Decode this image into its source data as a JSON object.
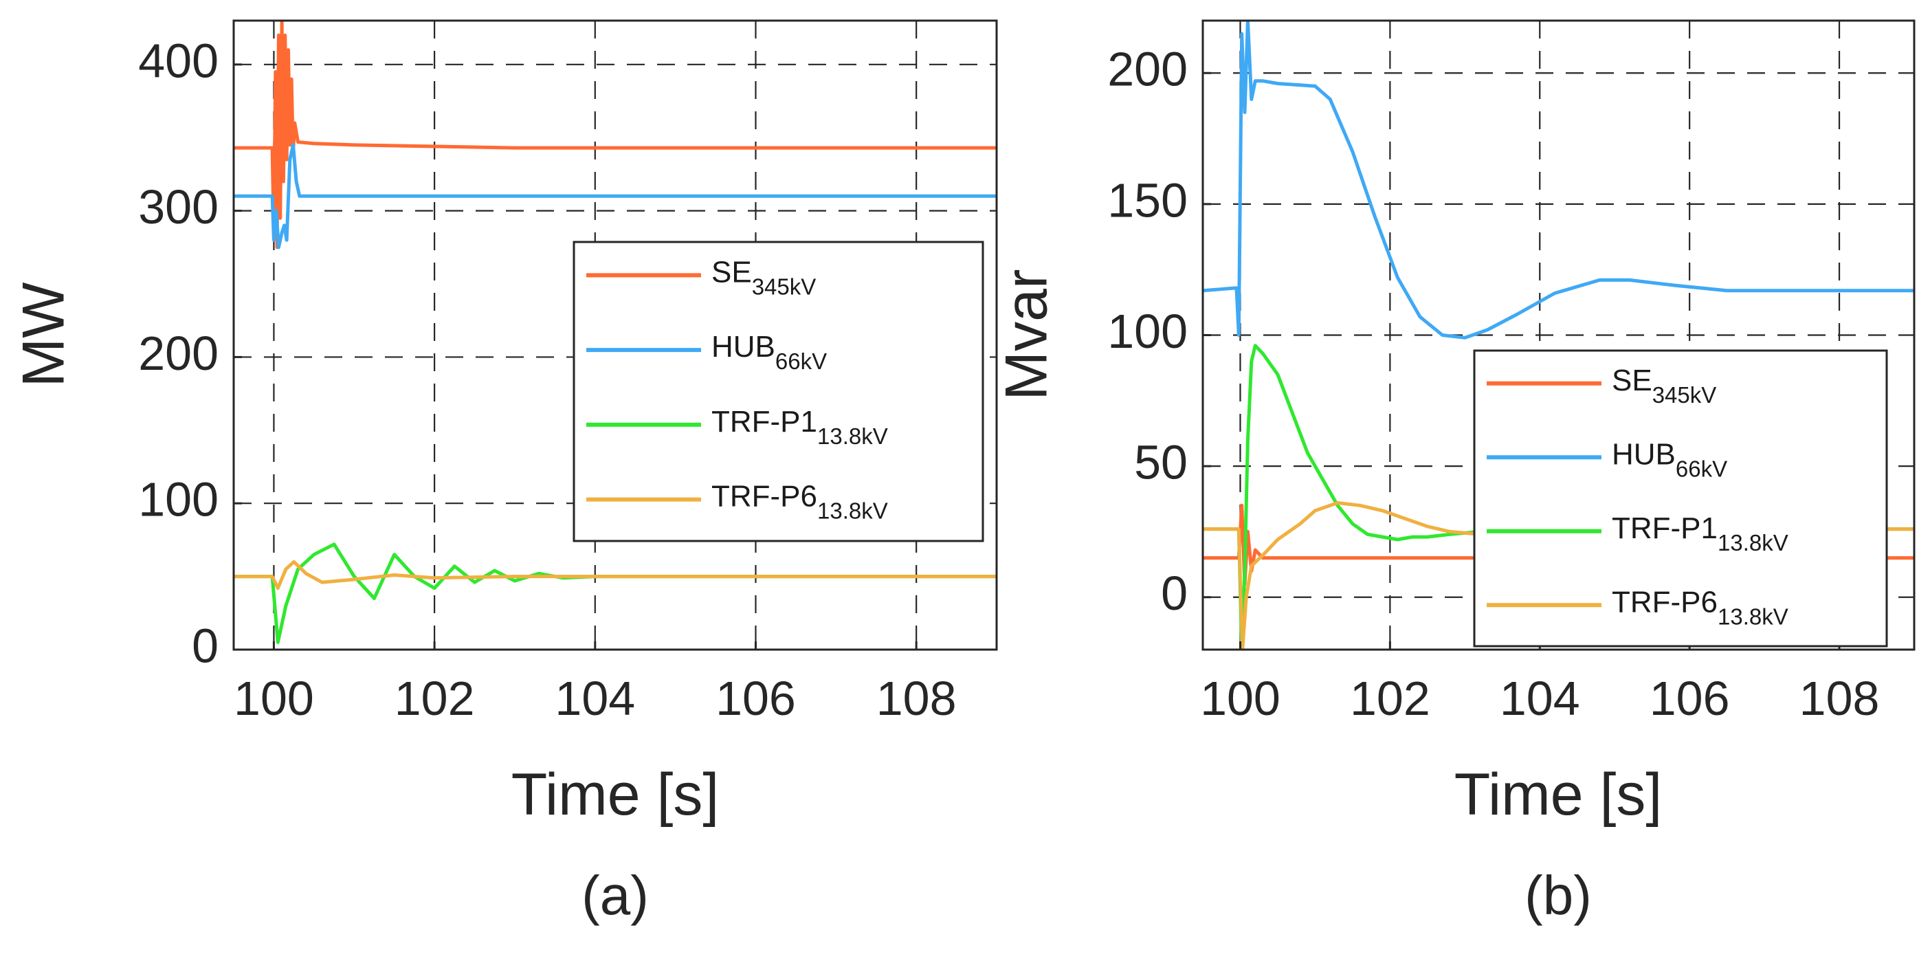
{
  "colors": {
    "se": "#ff6a33",
    "hub": "#3fa9f5",
    "trf_p1": "#2fe82f",
    "trf_p6": "#f0b040",
    "axes": "#262626"
  },
  "chart_data": [
    {
      "type": "line",
      "caption": "(a)",
      "xlabel": "Time [s]",
      "ylabel": "MW",
      "xlim": [
        99.5,
        109
      ],
      "ylim": [
        0,
        430
      ],
      "xticks": [
        100,
        102,
        104,
        106,
        108
      ],
      "yticks": [
        0,
        100,
        200,
        300,
        400
      ],
      "grid": true,
      "legend_position": "center-right",
      "legend": [
        {
          "key": "se",
          "label": "SE",
          "sub": "345kV"
        },
        {
          "key": "hub",
          "label": "HUB",
          "sub": "66kV"
        },
        {
          "key": "trf_p1",
          "label": "TRF-P1",
          "sub": "13.8kV"
        },
        {
          "key": "trf_p6",
          "label": "TRF-P6",
          "sub": "13.8kV"
        }
      ],
      "series": [
        {
          "key": "se",
          "x": [
            99.5,
            99.98,
            100.0,
            100.02,
            100.04,
            100.06,
            100.08,
            100.1,
            100.12,
            100.14,
            100.16,
            100.18,
            100.2,
            100.22,
            100.24,
            100.26,
            100.3,
            100.5,
            101,
            102,
            103,
            105,
            109
          ],
          "y": [
            343,
            343,
            285,
            395,
            275,
            420,
            295,
            430,
            320,
            420,
            335,
            410,
            345,
            390,
            340,
            360,
            347,
            346,
            345,
            344,
            343,
            343,
            343
          ]
        },
        {
          "key": "hub",
          "x": [
            99.5,
            99.98,
            100.0,
            100.03,
            100.06,
            100.1,
            100.13,
            100.16,
            100.2,
            100.24,
            100.28,
            100.32,
            100.4,
            101,
            103,
            105,
            109
          ],
          "y": [
            310,
            310,
            280,
            300,
            275,
            285,
            290,
            280,
            335,
            345,
            320,
            310,
            310,
            310,
            310,
            310,
            310
          ]
        },
        {
          "key": "trf_p1",
          "x": [
            99.5,
            99.98,
            100.05,
            100.15,
            100.3,
            100.5,
            100.75,
            101.0,
            101.25,
            101.5,
            101.75,
            102.0,
            102.25,
            102.5,
            102.75,
            103.0,
            103.3,
            103.6,
            104.0,
            105,
            109
          ],
          "y": [
            50,
            50,
            5,
            30,
            55,
            65,
            72,
            50,
            35,
            65,
            50,
            42,
            57,
            46,
            54,
            47,
            52,
            49,
            50,
            50,
            50
          ]
        },
        {
          "key": "trf_p6",
          "x": [
            99.5,
            99.98,
            100.05,
            100.15,
            100.25,
            100.4,
            100.6,
            101.0,
            101.5,
            102.0,
            103.0,
            105,
            109
          ],
          "y": [
            50,
            50,
            42,
            55,
            60,
            52,
            46,
            48,
            51,
            49,
            50,
            50,
            50
          ]
        }
      ]
    },
    {
      "type": "line",
      "caption": "(b)",
      "xlabel": "Time [s]",
      "ylabel": "Mvar",
      "xlim": [
        99.5,
        109
      ],
      "ylim": [
        -20,
        220
      ],
      "xticks": [
        100,
        102,
        104,
        106,
        108
      ],
      "yticks": [
        0,
        50,
        100,
        150,
        200
      ],
      "grid": true,
      "legend_position": "bottom-right",
      "legend": [
        {
          "key": "se",
          "label": "SE",
          "sub": "345kV"
        },
        {
          "key": "hub",
          "label": "HUB",
          "sub": "66kV"
        },
        {
          "key": "trf_p1",
          "label": "TRF-P1",
          "sub": "13.8kV"
        },
        {
          "key": "trf_p6",
          "label": "TRF-P6",
          "sub": "13.8kV"
        }
      ],
      "series": [
        {
          "key": "se",
          "x": [
            99.5,
            99.98,
            100.02,
            100.06,
            100.1,
            100.15,
            100.2,
            100.3,
            101,
            103,
            105,
            109
          ],
          "y": [
            15,
            15,
            35,
            5,
            25,
            10,
            18,
            15,
            15,
            15,
            15,
            15
          ]
        },
        {
          "key": "hub",
          "x": [
            99.5,
            99.95,
            99.98,
            100.02,
            100.06,
            100.1,
            100.15,
            100.2,
            100.3,
            100.5,
            101.0,
            101.2,
            101.5,
            101.8,
            102.1,
            102.4,
            102.7,
            103.0,
            103.3,
            103.7,
            104.2,
            104.8,
            105.2,
            105.8,
            106.5,
            107.5,
            108.5,
            109
          ],
          "y": [
            117,
            118,
            100,
            215,
            185,
            220,
            190,
            197,
            197,
            196,
            195,
            190,
            170,
            145,
            122,
            107,
            100,
            99,
            102,
            108,
            116,
            121,
            121,
            119,
            117,
            117,
            117,
            117
          ]
        },
        {
          "key": "trf_p1",
          "x": [
            99.5,
            99.98,
            100.02,
            100.06,
            100.1,
            100.15,
            100.2,
            100.3,
            100.5,
            100.7,
            100.9,
            101.1,
            101.3,
            101.5,
            101.7,
            101.9,
            102.1,
            102.3,
            102.5,
            102.8,
            103.2,
            104,
            109
          ],
          "y": [
            26,
            26,
            -20,
            10,
            60,
            90,
            96,
            93,
            85,
            70,
            55,
            45,
            35,
            28,
            24,
            23,
            22,
            23,
            23,
            24,
            25,
            26,
            26
          ]
        },
        {
          "key": "trf_p6",
          "x": [
            99.5,
            99.98,
            100.03,
            100.08,
            100.15,
            100.3,
            100.5,
            100.8,
            101.0,
            101.3,
            101.6,
            101.9,
            102.2,
            102.5,
            102.8,
            103.2,
            103.6,
            104.2,
            105,
            109
          ],
          "y": [
            26,
            26,
            -20,
            0,
            12,
            16,
            22,
            28,
            33,
            36,
            35,
            33,
            30,
            27,
            25,
            24,
            24,
            25,
            26,
            26
          ]
        }
      ]
    }
  ]
}
